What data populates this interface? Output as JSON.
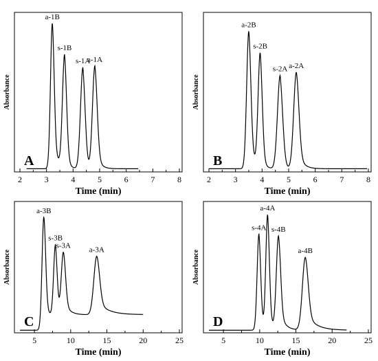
{
  "chart_data": [
    {
      "panel": "A",
      "type": "line",
      "xlabel": "Time (min)",
      "ylabel": "Absorbance",
      "xlim": [
        2,
        8
      ],
      "xticks": [
        2,
        3,
        4,
        5,
        6,
        7,
        8
      ],
      "ylim": [
        0,
        1
      ],
      "x_range": [
        2.25,
        6.45
      ],
      "baseline": 0.02,
      "peaks": [
        {
          "label": "a-1B",
          "x": 3.22,
          "y": 0.92,
          "width": 0.07,
          "tail": 0.16
        },
        {
          "label": "s-1B",
          "x": 3.68,
          "y": 0.71,
          "width": 0.08,
          "tail": 0.1
        },
        {
          "label": "s-1A",
          "x": 4.37,
          "y": 0.64,
          "width": 0.09,
          "tail": 0.08
        },
        {
          "label": "a-1A",
          "x": 4.82,
          "y": 0.65,
          "width": 0.09,
          "tail": 0.14
        }
      ]
    },
    {
      "panel": "B",
      "type": "line",
      "xlabel": "Time (min)",
      "ylabel": "Absorbance",
      "xlim": [
        2,
        8
      ],
      "xticks": [
        2,
        3,
        4,
        5,
        6,
        7,
        8
      ],
      "ylim": [
        0,
        1
      ],
      "x_range": [
        2.0,
        7.95
      ],
      "baseline": 0.02,
      "peaks": [
        {
          "label": "a-2B",
          "x": 3.5,
          "y": 0.87,
          "width": 0.08,
          "tail": 0.16
        },
        {
          "label": "s-2B",
          "x": 3.93,
          "y": 0.72,
          "width": 0.08,
          "tail": 0.1
        },
        {
          "label": "s-2A",
          "x": 4.68,
          "y": 0.59,
          "width": 0.1,
          "tail": 0.1
        },
        {
          "label": "a-2A",
          "x": 5.29,
          "y": 0.61,
          "width": 0.1,
          "tail": 0.18
        }
      ]
    },
    {
      "panel": "C",
      "type": "line",
      "xlabel": "Time (min)",
      "ylabel": "Absorbance",
      "xlim": [
        3,
        25
      ],
      "xticks": [
        5,
        10,
        15,
        20,
        25
      ],
      "ylim": [
        0,
        1
      ],
      "x_range": [
        3.0,
        20.0
      ],
      "baseline": 0.02,
      "end_level": 0.14,
      "peaks": [
        {
          "label": "a-3B",
          "x": 6.3,
          "y": 0.87,
          "width": 0.25,
          "tail": 0.8
        },
        {
          "label": "s-3B",
          "x": 7.9,
          "y": 0.55,
          "width": 0.25,
          "tail": 0.3
        },
        {
          "label": "s-3A",
          "x": 9.0,
          "y": 0.49,
          "width": 0.3,
          "tail": 0.8
        },
        {
          "label": "a-3A",
          "x": 13.6,
          "y": 0.45,
          "width": 0.4,
          "tail": 1.4
        }
      ]
    },
    {
      "panel": "D",
      "type": "line",
      "xlabel": "Time (min)",
      "ylabel": "Absorbance",
      "xlim": [
        3,
        25
      ],
      "xticks": [
        5,
        10,
        15,
        20,
        25
      ],
      "ylim": [
        0,
        1
      ],
      "x_range": [
        3.0,
        22.0
      ],
      "baseline": 0.02,
      "peaks": [
        {
          "label": "s-4A",
          "x": 9.9,
          "y": 0.74,
          "width": 0.25,
          "tail": 0.4
        },
        {
          "label": "a-4A",
          "x": 11.1,
          "y": 0.88,
          "width": 0.25,
          "tail": 0.4
        },
        {
          "label": "s-4B",
          "x": 12.6,
          "y": 0.72,
          "width": 0.3,
          "tail": 0.7
        },
        {
          "label": "a-4B",
          "x": 16.3,
          "y": 0.56,
          "width": 0.4,
          "tail": 1.3
        }
      ]
    }
  ]
}
